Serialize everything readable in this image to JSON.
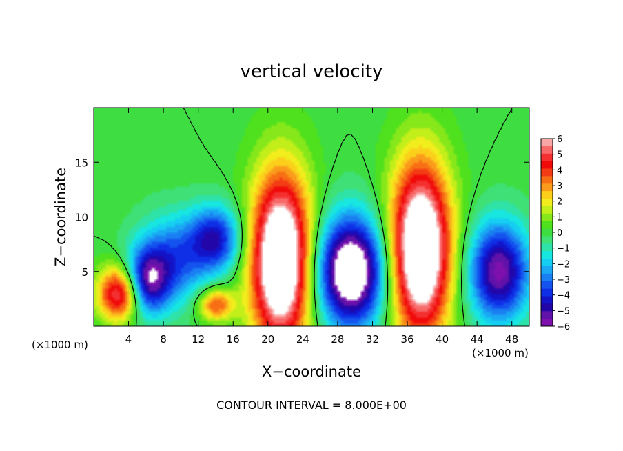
{
  "chart_data": {
    "type": "heatmap",
    "title": "vertical velocity",
    "xlabel": "X−coordinate",
    "ylabel": "Z−coordinate",
    "x_unit_left": "(×1000 m)",
    "x_unit_right": "(×1000 m)",
    "footer": "CONTOUR INTERVAL = 8.000E+00",
    "xlim": [
      0,
      50
    ],
    "ylim": [
      0,
      20
    ],
    "x_ticks": [
      {
        "value": 4,
        "label": "4"
      },
      {
        "value": 8,
        "label": "8"
      },
      {
        "value": 12,
        "label": "12"
      },
      {
        "value": 16,
        "label": "16"
      },
      {
        "value": 20,
        "label": "20"
      },
      {
        "value": 24,
        "label": "24"
      },
      {
        "value": 28,
        "label": "28"
      },
      {
        "value": 32,
        "label": "32"
      },
      {
        "value": 36,
        "label": "36"
      },
      {
        "value": 40,
        "label": "40"
      },
      {
        "value": 44,
        "label": "44"
      },
      {
        "value": 48,
        "label": "48"
      }
    ],
    "y_ticks": [
      {
        "value": 5,
        "label": "5"
      },
      {
        "value": 10,
        "label": "10"
      },
      {
        "value": 15,
        "label": "15"
      }
    ],
    "colorbar": {
      "min": -6,
      "max": 6,
      "tick_labels": [
        "6",
        "5",
        "4",
        "3",
        "2",
        "1",
        "0",
        "−1",
        "−2",
        "−3",
        "−4",
        "−5",
        "−6"
      ],
      "levels": [
        {
          "value": 6.0,
          "color": "#f9a6a6"
        },
        {
          "value": 5.5,
          "color": "#f86a6a"
        },
        {
          "value": 5.0,
          "color": "#f53030"
        },
        {
          "value": 4.5,
          "color": "#f00a0a"
        },
        {
          "value": 4.0,
          "color": "#f43c14"
        },
        {
          "value": 3.5,
          "color": "#f86e14"
        },
        {
          "value": 3.0,
          "color": "#fb9b1b"
        },
        {
          "value": 2.5,
          "color": "#fccf1b"
        },
        {
          "value": 2.0,
          "color": "#f2ed1d"
        },
        {
          "value": 1.5,
          "color": "#c2ef1a"
        },
        {
          "value": 1.0,
          "color": "#86e81b"
        },
        {
          "value": 0.5,
          "color": "#4fe11d"
        },
        {
          "value": 0.0,
          "color": "#3ede42"
        },
        {
          "value": -0.5,
          "color": "#3fe076"
        },
        {
          "value": -1.0,
          "color": "#2fe2a8"
        },
        {
          "value": -1.5,
          "color": "#18e6e0"
        },
        {
          "value": -2.0,
          "color": "#16cdf2"
        },
        {
          "value": -2.5,
          "color": "#1aa7f3"
        },
        {
          "value": -3.0,
          "color": "#1a7ff2"
        },
        {
          "value": -3.5,
          "color": "#1453ee"
        },
        {
          "value": -4.0,
          "color": "#0e2fe6"
        },
        {
          "value": -4.5,
          "color": "#1313c8"
        },
        {
          "value": -5.0,
          "color": "#2306a8"
        },
        {
          "value": -5.5,
          "color": "#6112a8"
        },
        {
          "value": -6.0,
          "color": "#7e10ae"
        }
      ]
    },
    "cells": [
      {
        "xc": 3,
        "zc": 3,
        "rx": 2.5,
        "rz": 2.5,
        "w": 6
      },
      {
        "xc": 6,
        "zc": 4,
        "rx": 2.5,
        "rz": 3,
        "w": -5
      },
      {
        "xc": 9,
        "zc": 6,
        "rx": 4,
        "rz": 4,
        "w": -3.5
      },
      {
        "xc": 14,
        "zc": 8,
        "rx": 3,
        "rz": 3,
        "w": -4.5
      },
      {
        "xc": 14,
        "zc": 2,
        "rx": 2,
        "rz": 1.5,
        "w": 4
      },
      {
        "xc": 21.5,
        "zc": 6,
        "rx": 3.5,
        "rz": 8,
        "w": 9
      },
      {
        "xc": 29.5,
        "zc": 5,
        "rx": 4,
        "rz": 5,
        "w": -8
      },
      {
        "xc": 37.5,
        "zc": 7,
        "rx": 3.5,
        "rz": 8,
        "w": 9
      },
      {
        "xc": 46.5,
        "zc": 5,
        "rx": 3.5,
        "rz": 4.5,
        "w": -6
      }
    ]
  }
}
